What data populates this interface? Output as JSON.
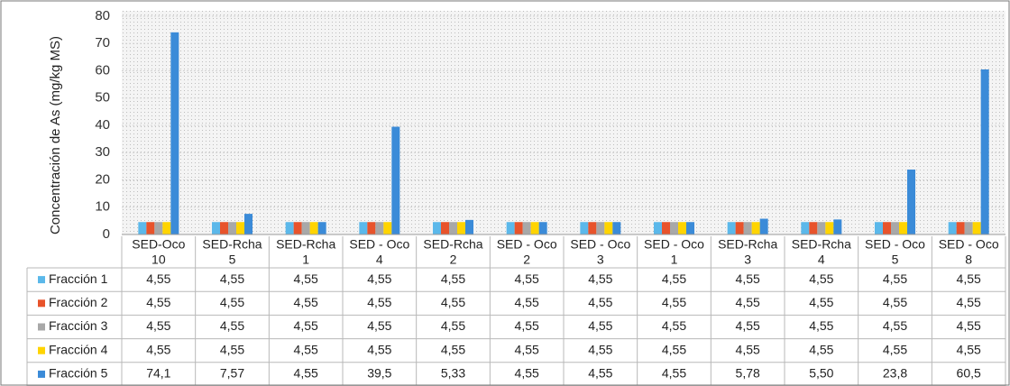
{
  "chart_data": {
    "type": "bar",
    "y_label": "Concentración de As (mg/kg MS)",
    "categories": [
      [
        "SED-Oco",
        "10"
      ],
      [
        "SED-Rcha",
        "5"
      ],
      [
        "SED-Rcha",
        "1"
      ],
      [
        "SED - Oco",
        "4"
      ],
      [
        "SED-Rcha",
        "2"
      ],
      [
        "SED - Oco",
        "2"
      ],
      [
        "SED - Oco",
        "3"
      ],
      [
        "SED - Oco",
        "1"
      ],
      [
        "SED-Rcha",
        "3"
      ],
      [
        "SED-Rcha",
        "4"
      ],
      [
        "SED - Oco",
        "5"
      ],
      [
        "SED - Oco",
        "8"
      ]
    ],
    "series": [
      {
        "name": "Fracción 1",
        "color": "#5bb8ea",
        "values": [
          4.55,
          4.55,
          4.55,
          4.55,
          4.55,
          4.55,
          4.55,
          4.55,
          4.55,
          4.55,
          4.55,
          4.55
        ],
        "value_labels": [
          "4,55",
          "4,55",
          "4,55",
          "4,55",
          "4,55",
          "4,55",
          "4,55",
          "4,55",
          "4,55",
          "4,55",
          "4,55",
          "4,55"
        ]
      },
      {
        "name": "Fracción 2",
        "color": "#e8532b",
        "values": [
          4.55,
          4.55,
          4.55,
          4.55,
          4.55,
          4.55,
          4.55,
          4.55,
          4.55,
          4.55,
          4.55,
          4.55
        ],
        "value_labels": [
          "4,55",
          "4,55",
          "4,55",
          "4,55",
          "4,55",
          "4,55",
          "4,55",
          "4,55",
          "4,55",
          "4,55",
          "4,55",
          "4,55"
        ]
      },
      {
        "name": "Fracción 3",
        "color": "#a8a8a8",
        "values": [
          4.55,
          4.55,
          4.55,
          4.55,
          4.55,
          4.55,
          4.55,
          4.55,
          4.55,
          4.55,
          4.55,
          4.55
        ],
        "value_labels": [
          "4,55",
          "4,55",
          "4,55",
          "4,55",
          "4,55",
          "4,55",
          "4,55",
          "4,55",
          "4,55",
          "4,55",
          "4,55",
          "4,55"
        ]
      },
      {
        "name": "Fracción 4",
        "color": "#ffd400",
        "values": [
          4.55,
          4.55,
          4.55,
          4.55,
          4.55,
          4.55,
          4.55,
          4.55,
          4.55,
          4.55,
          4.55,
          4.55
        ],
        "value_labels": [
          "4,55",
          "4,55",
          "4,55",
          "4,55",
          "4,55",
          "4,55",
          "4,55",
          "4,55",
          "4,55",
          "4,55",
          "4,55",
          "4,55"
        ]
      },
      {
        "name": "Fracción 5",
        "color": "#3b8bd8",
        "values": [
          74.1,
          7.57,
          4.55,
          39.5,
          5.33,
          4.55,
          4.55,
          4.55,
          5.78,
          5.5,
          23.8,
          60.5
        ],
        "value_labels": [
          "74,1",
          "7,57",
          "4,55",
          "39,5",
          "5,33",
          "4,55",
          "4,55",
          "4,55",
          "5,78",
          "5,50",
          "23,8",
          "60,5"
        ]
      }
    ],
    "ylim": [
      0,
      80
    ],
    "yticks": [
      0,
      10,
      20,
      30,
      40,
      50,
      60,
      70,
      80
    ],
    "grid": true
  }
}
